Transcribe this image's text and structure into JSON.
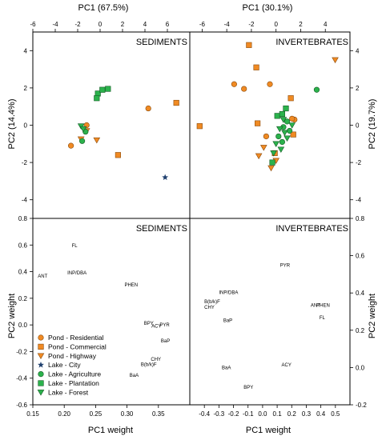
{
  "colors": {
    "orange": "#f08a23",
    "orange_stroke": "#8a4d10",
    "green": "#2bb24c",
    "green_stroke": "#155c26",
    "star": "#1f3f6e"
  },
  "axis_labels": {
    "top_left_x": "PC1 (67.5%)",
    "top_right_x": "PC1 (30.1%)",
    "left_y_top": "PC2 (14.4%)",
    "right_y_top": "PC2 (19.7%)",
    "left_y_bottom": "PC2 weight",
    "right_y_bottom": "PC2 weight",
    "bottom_left_x": "PC1 weight",
    "bottom_right_x": "PC1 weight"
  },
  "panel_titles": {
    "top_left": "SEDIMENTS",
    "top_right": "INVERTEBRATES",
    "bottom_left": "SEDIMENTS",
    "bottom_right": "INVERTEBRATES"
  },
  "legend": [
    {
      "label": "Pond - Residential",
      "marker": "circle",
      "color": "orange"
    },
    {
      "label": "Pond - Commercial",
      "marker": "square",
      "color": "orange"
    },
    {
      "label": "Pond - Highway",
      "marker": "tri-down",
      "color": "orange"
    },
    {
      "label": "Lake - City",
      "marker": "star",
      "color": "star"
    },
    {
      "label": "Lake - Agriculture",
      "marker": "circle",
      "color": "green"
    },
    {
      "label": "Lake - Plantation",
      "marker": "square",
      "color": "green"
    },
    {
      "label": "Lake - Forest",
      "marker": "tri-down",
      "color": "green"
    }
  ],
  "chart_data": [
    {
      "type": "scatter",
      "panel": "sediments-scores",
      "xlabel": "PC1 (67.5%)",
      "ylabel": "PC2 (14.4%)",
      "xlim": [
        -6,
        8
      ],
      "ylim": [
        -5,
        5
      ],
      "xticks": [
        -6,
        -4,
        -2,
        0,
        2,
        4,
        6
      ],
      "yticks": [
        -4,
        -2,
        0,
        2,
        4
      ],
      "points": [
        {
          "group": "Pond - Residential",
          "x": -2.6,
          "y": -1.1
        },
        {
          "group": "Pond - Residential",
          "x": -1.2,
          "y": 0.0
        },
        {
          "group": "Pond - Residential",
          "x": 4.3,
          "y": 0.9
        },
        {
          "group": "Pond - Commercial",
          "x": 1.6,
          "y": -1.6
        },
        {
          "group": "Pond - Commercial",
          "x": 6.8,
          "y": 1.2
        },
        {
          "group": "Pond - Highway",
          "x": -1.2,
          "y": -0.3
        },
        {
          "group": "Pond - Highway",
          "x": -1.7,
          "y": -0.75
        },
        {
          "group": "Pond - Highway",
          "x": -0.3,
          "y": -0.8
        },
        {
          "group": "Lake - City",
          "x": 5.8,
          "y": -2.8
        },
        {
          "group": "Lake - Agriculture",
          "x": -1.6,
          "y": -0.85
        },
        {
          "group": "Lake - Agriculture",
          "x": -1.3,
          "y": -0.35
        },
        {
          "group": "Lake - Plantation",
          "x": -0.2,
          "y": 1.7
        },
        {
          "group": "Lake - Plantation",
          "x": 0.2,
          "y": 1.9
        },
        {
          "group": "Lake - Plantation",
          "x": -0.3,
          "y": 1.45
        },
        {
          "group": "Lake - Plantation",
          "x": 0.7,
          "y": 1.95
        },
        {
          "group": "Lake - Forest",
          "x": -1.7,
          "y": -0.05
        },
        {
          "group": "Lake - Forest",
          "x": -1.5,
          "y": -0.2
        }
      ]
    },
    {
      "type": "scatter",
      "panel": "invertebrates-scores",
      "xlabel": "PC1 (30.1%)",
      "ylabel": "PC2 (19.7%)",
      "xlim": [
        -7,
        6
      ],
      "ylim": [
        -5,
        5
      ],
      "xticks": [
        -6,
        -4,
        -2,
        0,
        2,
        4
      ],
      "yticks": [
        -4,
        -2,
        0,
        2,
        4
      ],
      "points": [
        {
          "group": "Pond - Residential",
          "x": -3.4,
          "y": 2.2
        },
        {
          "group": "Pond - Residential",
          "x": -2.6,
          "y": 1.95
        },
        {
          "group": "Pond - Residential",
          "x": -0.5,
          "y": 2.2
        },
        {
          "group": "Pond - Residential",
          "x": -0.8,
          "y": -0.6
        },
        {
          "group": "Pond - Residential",
          "x": 1.5,
          "y": 0.3
        },
        {
          "group": "Pond - Residential",
          "x": 1.3,
          "y": 0.35
        },
        {
          "group": "Pond - Commercial",
          "x": -2.2,
          "y": 4.3
        },
        {
          "group": "Pond - Commercial",
          "x": -1.6,
          "y": 3.1
        },
        {
          "group": "Pond - Commercial",
          "x": -1.5,
          "y": 0.1
        },
        {
          "group": "Pond - Commercial",
          "x": -6.2,
          "y": -0.05
        },
        {
          "group": "Pond - Commercial",
          "x": 1.2,
          "y": 1.45
        },
        {
          "group": "Pond - Commercial",
          "x": 1.4,
          "y": -0.5
        },
        {
          "group": "Pond - Commercial",
          "x": -0.1,
          "y": -1.5
        },
        {
          "group": "Pond - Highway",
          "x": 4.8,
          "y": 3.5
        },
        {
          "group": "Pond - Highway",
          "x": -1.0,
          "y": -1.2
        },
        {
          "group": "Pond - Highway",
          "x": -1.4,
          "y": -1.65
        },
        {
          "group": "Pond - Highway",
          "x": 0.0,
          "y": -1.9
        },
        {
          "group": "Pond - Highway",
          "x": -0.4,
          "y": -2.3
        },
        {
          "group": "Lake - Agriculture",
          "x": 3.3,
          "y": 1.9
        },
        {
          "group": "Lake - Agriculture",
          "x": 0.6,
          "y": -0.1
        },
        {
          "group": "Lake - Agriculture",
          "x": 0.9,
          "y": 0.2
        },
        {
          "group": "Lake - Agriculture",
          "x": 0.2,
          "y": -0.6
        },
        {
          "group": "Lake - Agriculture",
          "x": 0.5,
          "y": -0.9
        },
        {
          "group": "Lake - Agriculture",
          "x": 1.1,
          "y": -0.3
        },
        {
          "group": "Lake - Plantation",
          "x": 0.8,
          "y": 0.9
        },
        {
          "group": "Lake - Plantation",
          "x": 0.1,
          "y": 0.5
        },
        {
          "group": "Lake - Plantation",
          "x": -0.3,
          "y": -2.0
        },
        {
          "group": "Lake - Plantation",
          "x": 0.5,
          "y": 0.6
        },
        {
          "group": "Lake - Forest",
          "x": 0.3,
          "y": -0.2
        },
        {
          "group": "Lake - Forest",
          "x": 0.7,
          "y": -0.4
        },
        {
          "group": "Lake - Forest",
          "x": 0.0,
          "y": -1.0
        },
        {
          "group": "Lake - Forest",
          "x": 0.4,
          "y": -1.3
        },
        {
          "group": "Lake - Forest",
          "x": -0.2,
          "y": -1.5
        },
        {
          "group": "Lake - Forest",
          "x": 0.9,
          "y": -0.7
        },
        {
          "group": "Lake - Forest",
          "x": 1.3,
          "y": 0.0
        },
        {
          "group": "Lake - Forest",
          "x": 0.6,
          "y": 0.3
        }
      ]
    },
    {
      "type": "scatter",
      "panel": "sediments-loadings",
      "xlabel": "PC1 weight",
      "ylabel": "PC2 weight",
      "xlim": [
        0.15,
        0.4
      ],
      "ylim": [
        -0.6,
        0.8
      ],
      "xticks": [
        0.15,
        0.2,
        0.25,
        0.3,
        0.35
      ],
      "yticks": [
        -0.6,
        -0.4,
        -0.2,
        0.0,
        0.2,
        0.4,
        0.6,
        0.8
      ],
      "labels": [
        {
          "text": "FL",
          "x": 0.212,
          "y": 0.585
        },
        {
          "text": "ANT",
          "x": 0.158,
          "y": 0.355
        },
        {
          "text": "INP/DBA",
          "x": 0.205,
          "y": 0.38
        },
        {
          "text": "PHEN",
          "x": 0.296,
          "y": 0.29
        },
        {
          "text": "BPY",
          "x": 0.327,
          "y": 0.0
        },
        {
          "text": "ACY",
          "x": 0.339,
          "y": -0.02
        },
        {
          "text": "PYR",
          "x": 0.352,
          "y": -0.01
        },
        {
          "text": "BaP",
          "x": 0.354,
          "y": -0.13
        },
        {
          "text": "CHY",
          "x": 0.338,
          "y": -0.27
        },
        {
          "text": "B(b/k)F",
          "x": 0.322,
          "y": -0.31
        },
        {
          "text": "BaA",
          "x": 0.304,
          "y": -0.39
        }
      ]
    },
    {
      "type": "scatter",
      "panel": "invertebrates-loadings",
      "xlabel": "PC1 weight",
      "ylabel": "PC2 weight",
      "xlim": [
        -0.5,
        0.6
      ],
      "ylim": [
        -0.2,
        0.8
      ],
      "xticks": [
        -0.4,
        -0.3,
        -0.2,
        -0.1,
        0.0,
        0.1,
        0.2,
        0.3,
        0.4,
        0.5
      ],
      "yticks": [
        -0.2,
        0.0,
        0.2,
        0.4,
        0.6,
        0.8
      ],
      "labels": [
        {
          "text": "PYR",
          "x": 0.12,
          "y": 0.54
        },
        {
          "text": "INP/DBA",
          "x": -0.3,
          "y": 0.395
        },
        {
          "text": "B(b/k)F",
          "x": -0.4,
          "y": 0.345
        },
        {
          "text": "CHY",
          "x": -0.4,
          "y": 0.315
        },
        {
          "text": "BaP",
          "x": -0.27,
          "y": 0.245
        },
        {
          "text": "ANT",
          "x": 0.33,
          "y": 0.325
        },
        {
          "text": "PHEN",
          "x": 0.37,
          "y": 0.325
        },
        {
          "text": "FL",
          "x": 0.39,
          "y": 0.26
        },
        {
          "text": "ACY",
          "x": 0.13,
          "y": 0.005
        },
        {
          "text": "BaA",
          "x": -0.28,
          "y": -0.01
        },
        {
          "text": "BPY",
          "x": -0.13,
          "y": -0.115
        }
      ]
    }
  ]
}
